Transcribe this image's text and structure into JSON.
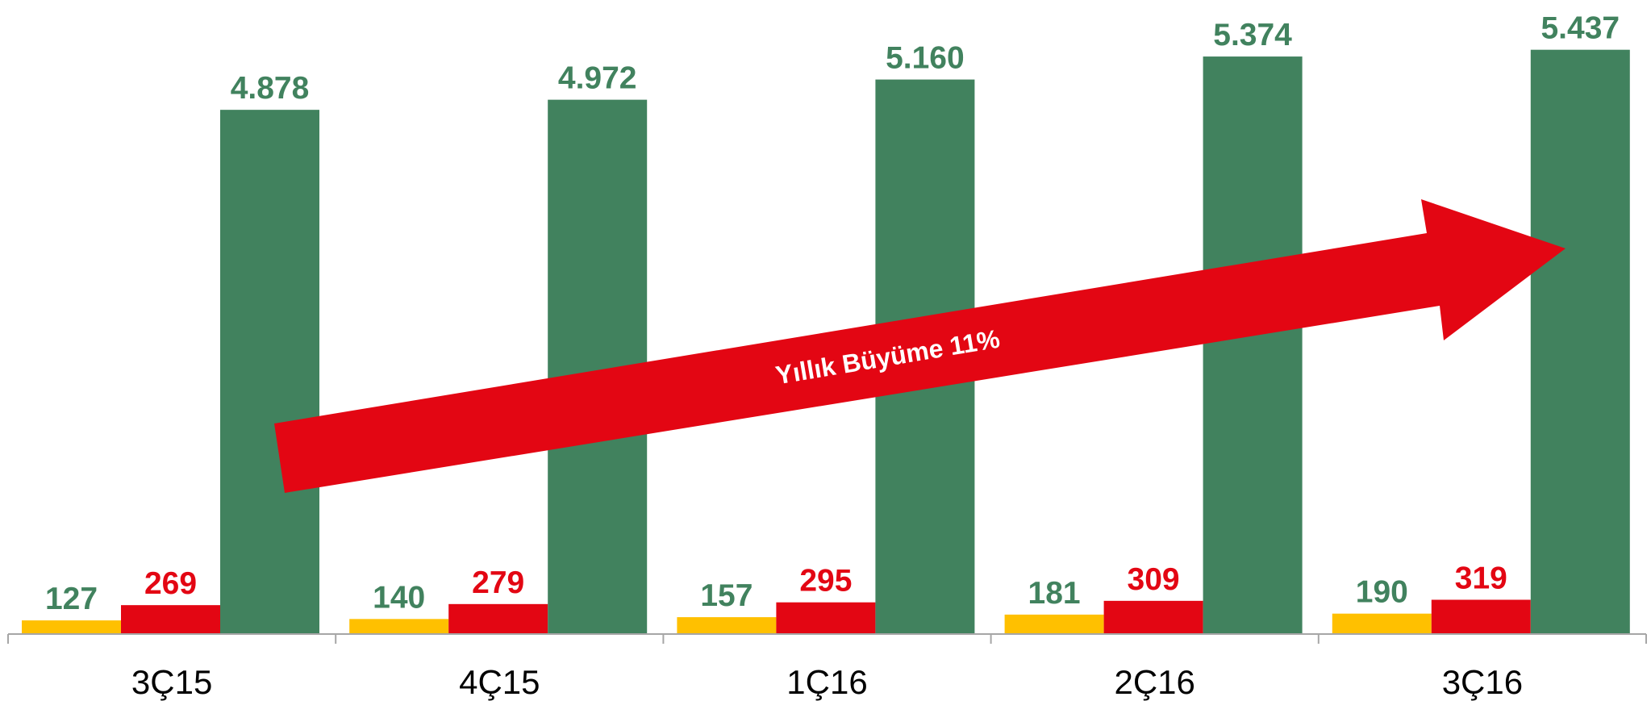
{
  "chart_data": {
    "type": "bar",
    "categories": [
      "3Ç15",
      "4Ç15",
      "1Ç16",
      "2Ç16",
      "3Ç16"
    ],
    "series": [
      {
        "color": "#FFC000",
        "label_color": "#41825E",
        "values": [
          127,
          140,
          157,
          181,
          190
        ]
      },
      {
        "color": "#E30613",
        "label_color": "#E30613",
        "values": [
          269,
          279,
          295,
          309,
          319
        ]
      },
      {
        "color": "#41825E",
        "label_color": "#41825E",
        "values": [
          4878,
          4972,
          5160,
          5374,
          5437
        ],
        "value_labels": [
          "4.878",
          "4.972",
          "5.160",
          "5.374",
          "5.437"
        ]
      }
    ],
    "ylim": [
      0,
      5900
    ],
    "annotation": "Yıllık Büyüme 11%"
  }
}
